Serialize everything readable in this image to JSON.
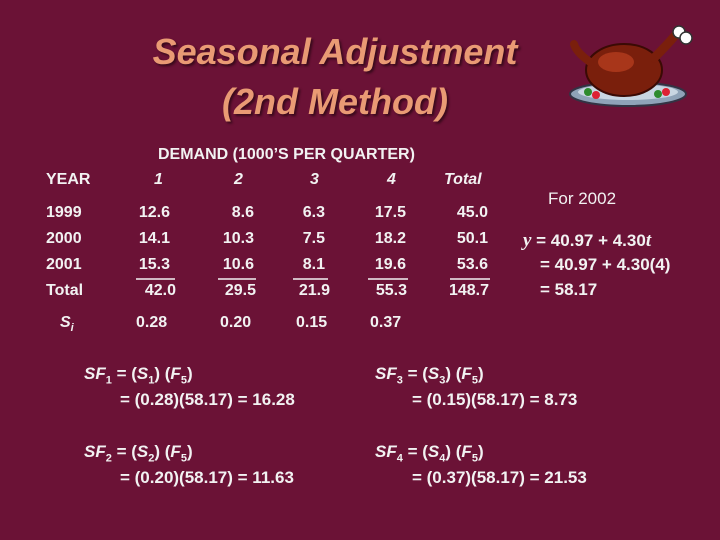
{
  "title": {
    "line1": "Seasonal Adjustment",
    "line2": "(2nd Method)"
  },
  "table": {
    "super_header": "DEMAND (1000’S PER QUARTER)",
    "year_header": "YEAR",
    "quarter_headers": [
      "1",
      "2",
      "3",
      "4",
      "Total"
    ],
    "rows": [
      {
        "year": "1999",
        "values": [
          "12.6",
          "8.6",
          "6.3",
          "17.5",
          "45.0"
        ]
      },
      {
        "year": "2000",
        "values": [
          "14.1",
          "10.3",
          "7.5",
          "18.2",
          "50.1"
        ]
      },
      {
        "year": "2001",
        "values": [
          "15.3",
          "10.6",
          "8.1",
          "19.6",
          "53.6"
        ]
      },
      {
        "year": "Total",
        "values": [
          "42.0",
          "29.5",
          "21.9",
          "55.3",
          "148.7"
        ]
      }
    ],
    "si_label": "S",
    "si_sub": "i",
    "si_values": [
      "0.28",
      "0.20",
      "0.15",
      "0.37"
    ]
  },
  "forecast": {
    "heading": "For 2002",
    "y": "y",
    "line1_rest": " = 40.97 + 4.30",
    "t": "t",
    "line2": "= 40.97 + 4.30(4)",
    "line3": "= 58.17"
  },
  "formulas": [
    {
      "sf": "SF",
      "n": "1",
      "s": "S",
      "f": "F",
      "f_sub": "5",
      "result": "= (0.28)(58.17) = 16.28"
    },
    {
      "sf": "SF",
      "n": "2",
      "s": "S",
      "f": "F",
      "f_sub": "5",
      "result": "= (0.20)(58.17) = 11.63"
    },
    {
      "sf": "SF",
      "n": "3",
      "s": "S",
      "f": "F",
      "f_sub": "5",
      "result": "= (0.15)(58.17) = 8.73"
    },
    {
      "sf": "SF",
      "n": "4",
      "s": "S",
      "f": "F",
      "f_sub": "5",
      "result": "= (0.37)(58.17) = 21.53"
    }
  ],
  "colors": {
    "background": "#6b1236",
    "title": "#e99a74",
    "text": "#f2f2f2"
  },
  "icons": [
    "roast-turkey-icon"
  ]
}
